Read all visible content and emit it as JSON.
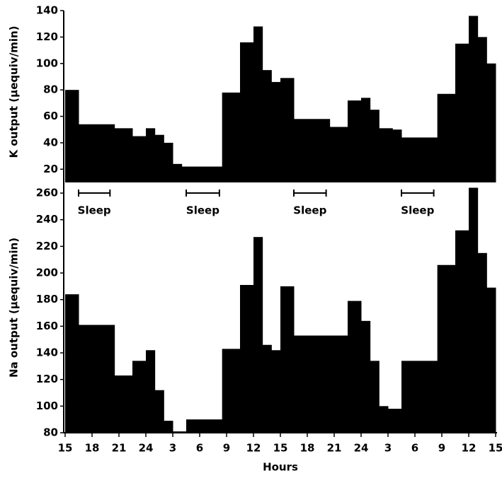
{
  "chart_data": [
    {
      "type": "histogram",
      "ylabel": "K output (μequiv/min)",
      "color": "#000000",
      "xlim": [
        0,
        48
      ],
      "ylim": [
        10,
        140
      ],
      "yticks": [
        20,
        40,
        60,
        80,
        100,
        120,
        140
      ],
      "bins": [
        0,
        1.5,
        5.5,
        7.5,
        9,
        10,
        11,
        12,
        13,
        17.5,
        19.5,
        21,
        22,
        23,
        24,
        25.5,
        29.5,
        31.5,
        33,
        34,
        35,
        36.5,
        37.5,
        41.5,
        43.5,
        45,
        46,
        47,
        48
      ],
      "values": [
        80,
        54,
        51,
        45,
        51,
        46,
        40,
        24,
        22,
        78,
        116,
        128,
        95,
        86,
        89,
        58,
        52,
        72,
        74,
        65,
        51,
        50,
        44,
        77,
        115,
        136,
        120,
        100
      ],
      "annotations": [
        {
          "text": "Sleep",
          "x": [
            1.5,
            5
          ]
        },
        {
          "text": "Sleep",
          "x": [
            13.5,
            17.2
          ]
        },
        {
          "text": "Sleep",
          "x": [
            25.5,
            29.1
          ]
        },
        {
          "text": "Sleep",
          "x": [
            37.5,
            41.1
          ]
        }
      ]
    },
    {
      "type": "histogram",
      "ylabel": "Na output (μequiv/min)",
      "xlabel": "Hours",
      "color": "#000000",
      "xlim": [
        0,
        48
      ],
      "ylim": [
        80,
        268
      ],
      "yticks": [
        80,
        100,
        120,
        140,
        160,
        180,
        200,
        220,
        240,
        260
      ],
      "xticks": [
        {
          "value": 0,
          "label": "15"
        },
        {
          "value": 3,
          "label": "18"
        },
        {
          "value": 6,
          "label": "21"
        },
        {
          "value": 9,
          "label": "24"
        },
        {
          "value": 12,
          "label": "3"
        },
        {
          "value": 15,
          "label": "6"
        },
        {
          "value": 18,
          "label": "9"
        },
        {
          "value": 21,
          "label": "12"
        },
        {
          "value": 24,
          "label": "15"
        },
        {
          "value": 27,
          "label": "18"
        },
        {
          "value": 30,
          "label": "21"
        },
        {
          "value": 33,
          "label": "24"
        },
        {
          "value": 36,
          "label": "3"
        },
        {
          "value": 39,
          "label": "6"
        },
        {
          "value": 42,
          "label": "9"
        },
        {
          "value": 45,
          "label": "12"
        },
        {
          "value": 48,
          "label": "15"
        }
      ],
      "bins": [
        0,
        1.5,
        5.5,
        7.5,
        9,
        10,
        11,
        12,
        13.5,
        17.5,
        19.5,
        21,
        22,
        23,
        24,
        25.5,
        31.5,
        33,
        34,
        35,
        36,
        37.5,
        41.5,
        43.5,
        45,
        46,
        47,
        48
      ],
      "values": [
        184,
        161,
        123,
        134,
        142,
        112,
        89,
        81,
        90,
        143,
        191,
        227,
        146,
        142,
        190,
        153,
        179,
        164,
        134,
        100,
        98,
        134,
        206,
        232,
        264,
        215,
        189
      ]
    }
  ]
}
